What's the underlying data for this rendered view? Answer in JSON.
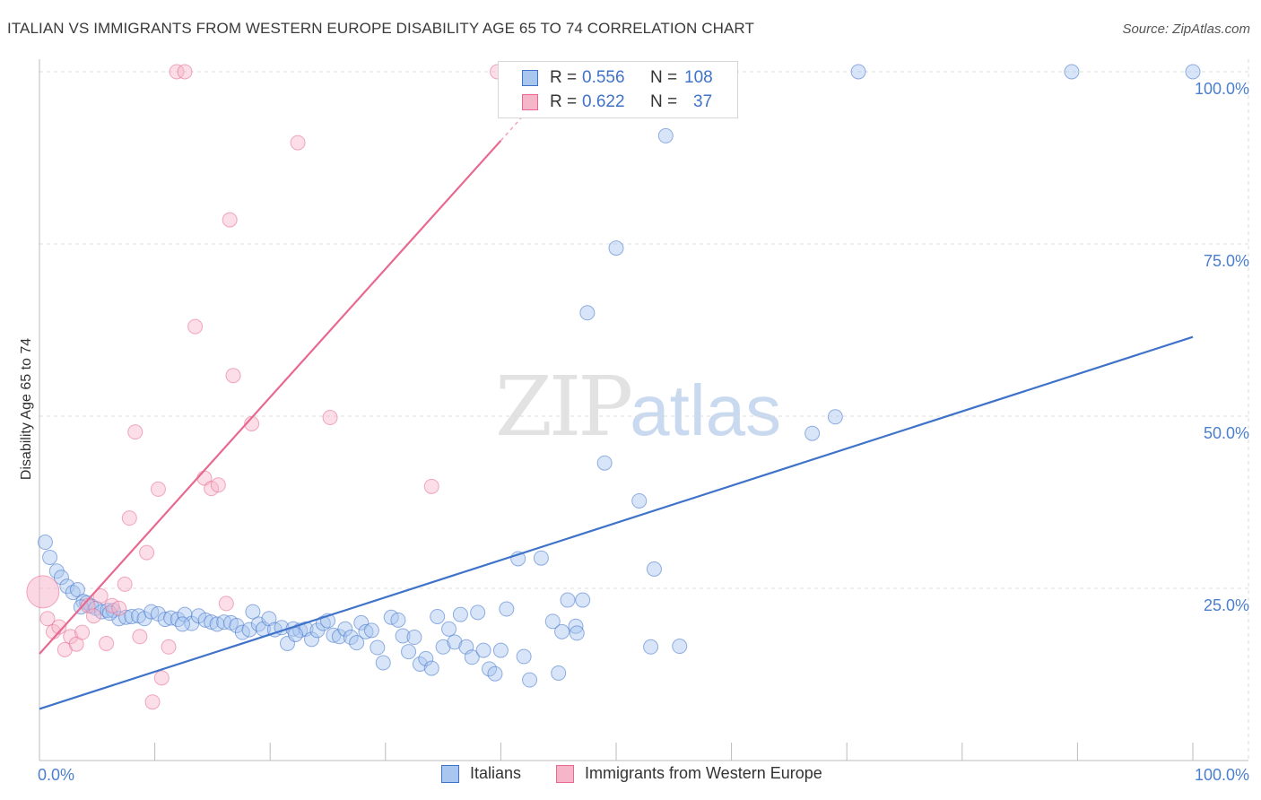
{
  "title": "ITALIAN VS IMMIGRANTS FROM WESTERN EUROPE DISABILITY AGE 65 TO 74 CORRELATION CHART",
  "source": "Source: ZipAtlas.com",
  "watermark": {
    "zip": "ZIP",
    "atlas": "atlas"
  },
  "legend": {
    "blue": {
      "r_label": "R =",
      "r_value": "0.556",
      "n_label": "N =",
      "n_value": "108"
    },
    "pink": {
      "r_label": "R =",
      "r_value": "0.622",
      "n_label": "N =",
      "n_value": "37"
    }
  },
  "bottom_legend": {
    "blue": "Italians",
    "pink": "Immigrants from Western Europe"
  },
  "colors": {
    "blue": "#3f73c9",
    "blue_fill": "#a9c6ef",
    "pink": "#e8688f",
    "pink_fill": "#f6b6ca",
    "grid": "#dcdcdc"
  },
  "chart_data": {
    "type": "scatter",
    "title": "ITALIAN VS IMMIGRANTS FROM WESTERN EUROPE DISABILITY AGE 65 TO 74 CORRELATION CHART",
    "xlabel": "",
    "ylabel": "Disability Age 65 to 74",
    "xlim": [
      0,
      100
    ],
    "ylim": [
      0,
      100
    ],
    "x_tick_labels": [
      "0.0%",
      "100.0%"
    ],
    "y_tick_labels": [
      "25.0%",
      "50.0%",
      "75.0%",
      "100.0%"
    ],
    "y_ticks": [
      25,
      50,
      75,
      100
    ],
    "series": [
      {
        "name": "Italians",
        "color": "#3f73c9",
        "trend": {
          "x": [
            0,
            100
          ],
          "y": [
            7.5,
            61.5
          ]
        },
        "points": [
          [
            0.5,
            31.7
          ],
          [
            0.9,
            29.5
          ],
          [
            1.5,
            27.5
          ],
          [
            1.9,
            26.6
          ],
          [
            2.4,
            25.3
          ],
          [
            2.9,
            24.4
          ],
          [
            3.3,
            24.8
          ],
          [
            3.8,
            23.1
          ],
          [
            4.1,
            22.9
          ],
          [
            4.5,
            22.4
          ],
          [
            4.9,
            22.1
          ],
          [
            5.4,
            21.6
          ],
          [
            5.9,
            21.8
          ],
          [
            6.4,
            21.8
          ],
          [
            6.9,
            20.6
          ],
          [
            7.5,
            20.8
          ],
          [
            8.0,
            20.9
          ],
          [
            8.6,
            21.0
          ],
          [
            9.1,
            20.6
          ],
          [
            9.7,
            21.6
          ],
          [
            10.3,
            21.3
          ],
          [
            10.9,
            20.5
          ],
          [
            11.4,
            20.7
          ],
          [
            12.0,
            20.5
          ],
          [
            12.6,
            21.2
          ],
          [
            13.2,
            19.9
          ],
          [
            13.8,
            21.0
          ],
          [
            14.4,
            20.4
          ],
          [
            14.9,
            20.1
          ],
          [
            15.4,
            19.8
          ],
          [
            16.0,
            20.1
          ],
          [
            16.6,
            20.0
          ],
          [
            17.1,
            19.6
          ],
          [
            17.6,
            18.6
          ],
          [
            18.2,
            19.0
          ],
          [
            18.5,
            21.6
          ],
          [
            19.0,
            19.8
          ],
          [
            19.4,
            19.1
          ],
          [
            19.9,
            20.6
          ],
          [
            20.4,
            19.0
          ],
          [
            21.0,
            19.3
          ],
          [
            21.5,
            17.0
          ],
          [
            22.0,
            19.1
          ],
          [
            22.6,
            18.9
          ],
          [
            23.1,
            19.1
          ],
          [
            23.6,
            17.6
          ],
          [
            24.1,
            18.9
          ],
          [
            24.6,
            19.9
          ],
          [
            25.0,
            20.3
          ],
          [
            25.5,
            18.2
          ],
          [
            26.0,
            18.0
          ],
          [
            26.5,
            19.1
          ],
          [
            27.0,
            17.9
          ],
          [
            27.5,
            17.1
          ],
          [
            27.9,
            20.0
          ],
          [
            28.3,
            18.7
          ],
          [
            28.8,
            18.9
          ],
          [
            29.3,
            16.4
          ],
          [
            29.8,
            14.2
          ],
          [
            30.5,
            20.8
          ],
          [
            31.1,
            20.4
          ],
          [
            31.5,
            18.1
          ],
          [
            32.0,
            15.8
          ],
          [
            32.5,
            17.9
          ],
          [
            33.0,
            14.0
          ],
          [
            33.5,
            14.8
          ],
          [
            34.0,
            13.4
          ],
          [
            34.5,
            20.9
          ],
          [
            35.0,
            16.5
          ],
          [
            35.5,
            19.1
          ],
          [
            36.0,
            17.2
          ],
          [
            36.5,
            21.2
          ],
          [
            37.0,
            16.5
          ],
          [
            37.5,
            15.0
          ],
          [
            38.0,
            21.5
          ],
          [
            38.5,
            16.0
          ],
          [
            39.0,
            13.3
          ],
          [
            39.5,
            12.6
          ],
          [
            40.0,
            16.0
          ],
          [
            40.5,
            22.0
          ],
          [
            41.5,
            29.3
          ],
          [
            42.0,
            15.1
          ],
          [
            42.5,
            11.7
          ],
          [
            43.5,
            29.4
          ],
          [
            44.5,
            20.2
          ],
          [
            45.0,
            12.7
          ],
          [
            45.3,
            18.7
          ],
          [
            45.8,
            23.3
          ],
          [
            46.5,
            19.5
          ],
          [
            46.6,
            18.5
          ],
          [
            47.1,
            23.3
          ],
          [
            47.5,
            65.0
          ],
          [
            49.0,
            43.2
          ],
          [
            50.0,
            74.4
          ],
          [
            52.0,
            37.7
          ],
          [
            53.0,
            16.5
          ],
          [
            53.3,
            27.8
          ],
          [
            54.3,
            90.7
          ],
          [
            55.5,
            16.6
          ],
          [
            67.0,
            47.5
          ],
          [
            69.0,
            49.9
          ],
          [
            71.0,
            100.0
          ],
          [
            89.5,
            100.0
          ],
          [
            100.0,
            100.0
          ],
          [
            3.6,
            22.3
          ],
          [
            6.1,
            21.4
          ],
          [
            12.4,
            19.8
          ],
          [
            22.2,
            18.3
          ]
        ]
      },
      {
        "name": "Immigrants from Western Europe",
        "color": "#e8688f",
        "trend": {
          "x": [
            0,
            40
          ],
          "y": [
            15.5,
            90
          ]
        },
        "points": [
          [
            0.3,
            24.5
          ],
          [
            0.7,
            20.6
          ],
          [
            1.2,
            18.7
          ],
          [
            1.7,
            19.4
          ],
          [
            2.2,
            16.1
          ],
          [
            2.7,
            18.0
          ],
          [
            3.2,
            16.9
          ],
          [
            3.7,
            18.6
          ],
          [
            4.2,
            22.5
          ],
          [
            4.7,
            21.0
          ],
          [
            5.3,
            23.9
          ],
          [
            5.8,
            17.0
          ],
          [
            6.3,
            22.5
          ],
          [
            6.9,
            22.1
          ],
          [
            7.4,
            25.6
          ],
          [
            7.8,
            35.2
          ],
          [
            8.3,
            47.7
          ],
          [
            8.7,
            18.0
          ],
          [
            9.3,
            30.2
          ],
          [
            9.8,
            8.5
          ],
          [
            10.3,
            39.4
          ],
          [
            10.6,
            12.0
          ],
          [
            11.2,
            16.5
          ],
          [
            11.9,
            100.0
          ],
          [
            12.6,
            100.0
          ],
          [
            13.5,
            63.0
          ],
          [
            14.3,
            41.0
          ],
          [
            14.9,
            39.5
          ],
          [
            15.5,
            40.0
          ],
          [
            16.2,
            22.8
          ],
          [
            16.5,
            78.5
          ],
          [
            16.8,
            55.9
          ],
          [
            18.4,
            48.9
          ],
          [
            22.4,
            89.7
          ],
          [
            25.2,
            49.8
          ],
          [
            34.0,
            39.8
          ],
          [
            39.7,
            100.0
          ]
        ]
      }
    ]
  }
}
